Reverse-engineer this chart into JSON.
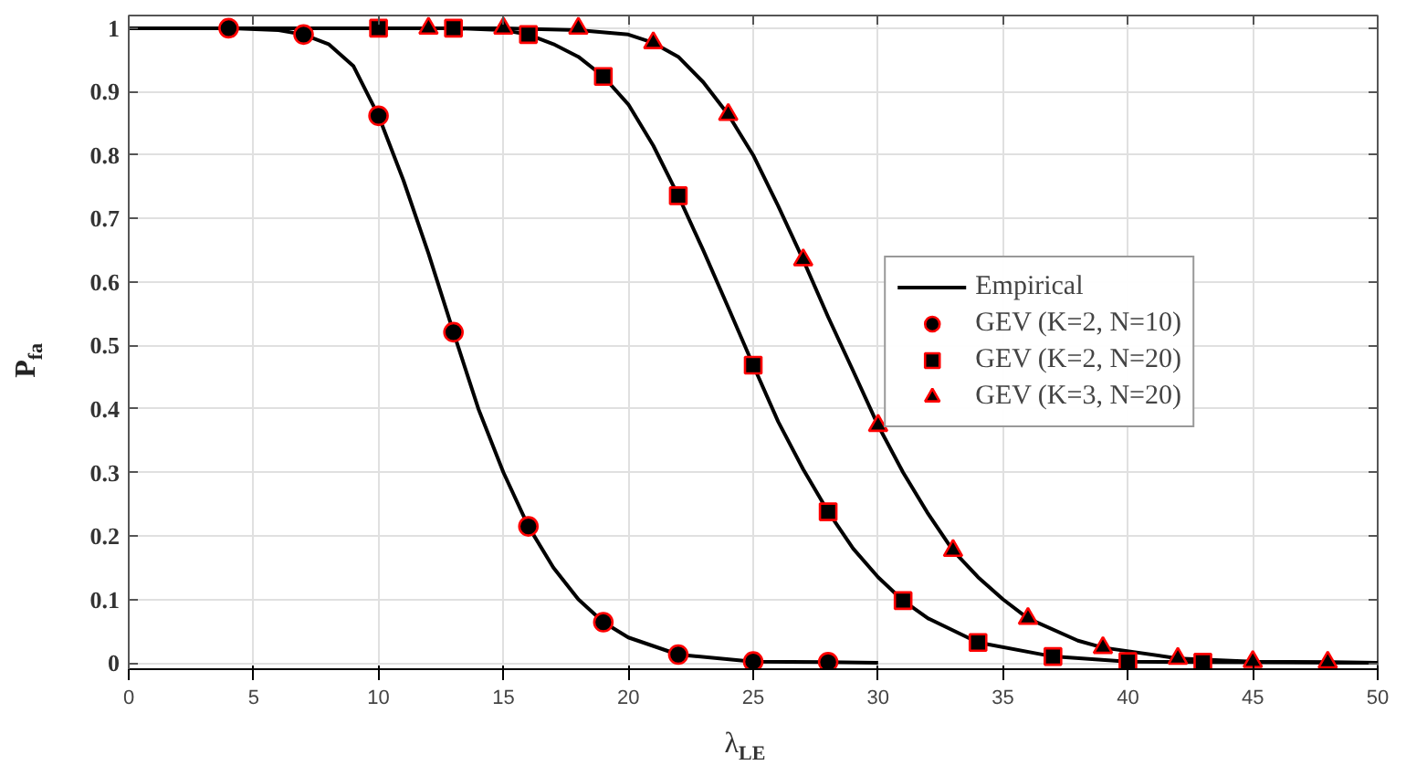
{
  "chart_data": {
    "type": "line",
    "xlabel": "λ$_{LE}$",
    "ylabel": "P$_{fa}$",
    "xlim": [
      0,
      50
    ],
    "ylim": [
      -0.01,
      1.02
    ],
    "xticks": [
      0,
      5,
      10,
      15,
      20,
      25,
      30,
      35,
      40,
      45,
      50
    ],
    "yticks": [
      0,
      0.1,
      0.2,
      0.3,
      0.4,
      0.5,
      0.6,
      0.7,
      0.8,
      0.9,
      1
    ],
    "grid": true,
    "legend": "right",
    "series": [
      {
        "name": "Empirical",
        "color": "#000000",
        "line_style": "solid",
        "x": [
          0,
          2,
          4,
          6,
          7,
          8,
          9,
          10,
          11,
          12,
          13,
          14,
          15,
          16,
          17,
          18,
          19,
          20,
          22,
          25,
          28,
          30
        ],
        "values": [
          1,
          1,
          1,
          0.997,
          0.99,
          0.975,
          0.94,
          0.862,
          0.76,
          0.645,
          0.521,
          0.4,
          0.3,
          0.215,
          0.15,
          0.1,
          0.064,
          0.04,
          0.013,
          0.002,
          0.001,
          0
        ]
      },
      {
        "color": "#000000",
        "line_style": "solid",
        "x": [
          0,
          10,
          13,
          15,
          16,
          17,
          18,
          19,
          20,
          21,
          22,
          23,
          24,
          25,
          26,
          27,
          28,
          29,
          30,
          31,
          32,
          34,
          37,
          40,
          43,
          50
        ],
        "values": [
          1,
          1,
          1,
          0.997,
          0.99,
          0.975,
          0.955,
          0.924,
          0.88,
          0.815,
          0.736,
          0.65,
          0.56,
          0.469,
          0.38,
          0.305,
          0.238,
          0.18,
          0.135,
          0.098,
          0.07,
          0.032,
          0.01,
          0.002,
          0.001,
          0
        ]
      },
      {
        "color": "#000000",
        "line_style": "solid",
        "x": [
          10,
          15,
          18,
          20,
          21,
          22,
          23,
          24,
          25,
          26,
          27,
          28,
          29,
          30,
          31,
          32,
          33,
          34,
          35,
          36,
          38,
          39,
          42,
          45,
          48,
          50
        ],
        "values": [
          1,
          1,
          0.997,
          0.99,
          0.977,
          0.955,
          0.915,
          0.864,
          0.8,
          0.72,
          0.635,
          0.545,
          0.46,
          0.374,
          0.3,
          0.235,
          0.177,
          0.135,
          0.1,
          0.07,
          0.035,
          0.024,
          0.007,
          0.002,
          0.001,
          0
        ]
      },
      {
        "name": "GEV (K=2, N=10)",
        "type": "scatter",
        "marker": "circle",
        "color": "#000000",
        "x": [
          4,
          7,
          10,
          13,
          16,
          19,
          22,
          25,
          28
        ],
        "values": [
          1,
          0.99,
          0.862,
          0.521,
          0.215,
          0.064,
          0.013,
          0.002,
          0.001
        ]
      },
      {
        "name": "GEV (K=2, N=20)",
        "type": "scatter",
        "marker": "square",
        "color": "#000000",
        "x": [
          10,
          13,
          16,
          19,
          22,
          25,
          28,
          31,
          34,
          37,
          40,
          43
        ],
        "values": [
          1,
          1,
          0.99,
          0.924,
          0.736,
          0.469,
          0.238,
          0.098,
          0.032,
          0.01,
          0.002,
          0.001
        ]
      },
      {
        "name": "GEV (K=3, N=20)",
        "type": "scatter",
        "marker": "triangle",
        "color": "#000000",
        "x": [
          12,
          15,
          18,
          21,
          24,
          27,
          30,
          33,
          36,
          39,
          42,
          45,
          48
        ],
        "values": [
          1,
          1,
          1,
          0.977,
          0.864,
          0.635,
          0.374,
          0.177,
          0.07,
          0.024,
          0.007,
          0.002,
          0.001
        ]
      }
    ]
  }
}
